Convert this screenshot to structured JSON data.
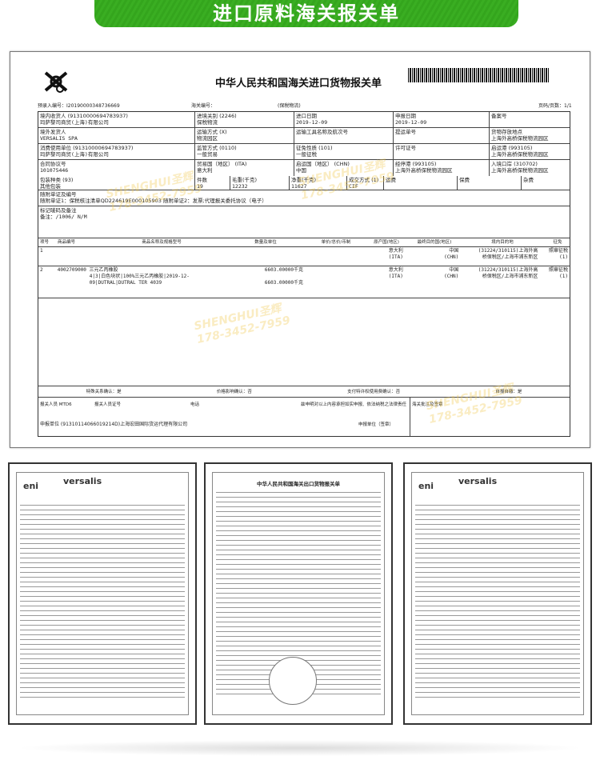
{
  "banner": {
    "title": "进口原料海关报关单"
  },
  "declaration": {
    "title": "中华人民共和国海关进口货物报关单",
    "pre_entry_no": "预录入编号：I20190000348736669",
    "customs_no_label": "海关编号：",
    "bonded": "(保税物流)",
    "page": "页码/页数：1/1",
    "fields": [
      [
        {
          "label": "境内收货人 (91310000694783937)",
          "value": "玛萨黎司商贸(上海)有限公司"
        },
        {
          "label": "进境关别 (2246)",
          "value": "保税物流"
        },
        {
          "label": "进口日期",
          "value": "2019-12-09"
        },
        {
          "label": "申报日期",
          "value": "2019-12-09"
        },
        {
          "label": "备案号",
          "value": ""
        }
      ],
      [
        {
          "label": "境外发货人",
          "value": "VERSALIS SPA"
        },
        {
          "label": "运输方式 (X)",
          "value": "物流园区"
        },
        {
          "label": "运输工具名称及航次号",
          "value": ""
        },
        {
          "label": "提运单号",
          "value": ""
        },
        {
          "label": "货物存放地点",
          "value": "上海外高桥保税物流园区"
        }
      ],
      [
        {
          "label": "消费使用单位 (91310000694783937)",
          "value": "玛萨黎司商贸(上海)有限公司"
        },
        {
          "label": "监管方式 (0110)",
          "value": "一般贸易"
        },
        {
          "label": "征免性质 (101)",
          "value": "一般征税"
        },
        {
          "label": "许可证号",
          "value": ""
        },
        {
          "label": "启运港 (993105)",
          "value": "上海外高桥保税物流园区"
        }
      ],
      [
        {
          "label": "合同协议号",
          "value": "101075446"
        },
        {
          "label": "贸易国（地区） (ITA)",
          "value": "意大利"
        },
        {
          "label": "启运国（地区） (CHN)",
          "value": "中国"
        },
        {
          "label": "经停港 (993105)",
          "value": "上海外高桥保税物流园区"
        },
        {
          "label": "入境口岸 (310702)",
          "value": "上海外高桥保税物流园区"
        }
      ]
    ],
    "packing": {
      "label": "包装种类 (93)",
      "value": "其他包装",
      "pieces_label": "件数",
      "pieces": "19",
      "gross_label": "毛重(千克)",
      "gross": "12232",
      "net_label": "净重(千克)",
      "net": "11627",
      "terms_label": "成交方式 (1)",
      "terms": "CIF",
      "freight": "运费",
      "insurance": "保费",
      "misc": "杂费"
    },
    "attached_label": "随附单证及编号",
    "attached": "随附单证1：保税核注清单QD224619E000105903  随附单证2：发票;代理报关委托协议（电子）",
    "marks_label": "标记唛码及备注",
    "marks": "备注：/1006/ N/M",
    "item_headers": [
      "项号",
      "商品编号",
      "商品名称及规格型号",
      "数量及单位",
      "单价/总价/币制",
      "原产国(地区)",
      "最终目的国(地区)",
      "境内目的地",
      "征免"
    ],
    "items": [
      {
        "no": "1",
        "code": "",
        "name": "",
        "qty": "",
        "qty2": "",
        "price": "",
        "origin": "意大利",
        "origin_code": "(ITA)",
        "dest": "中国",
        "dest_code": "(CHN)",
        "domestic": "(31224/310115)上海外高",
        "domestic2": "桥保税区/上海市浦东新区",
        "duty": "照章征税",
        "duty_code": "(1)"
      },
      {
        "no": "2",
        "code": "4002709000",
        "name": "三元乙丙橡胶",
        "spec": "4|3|白色块状|100%三元乙丙橡胶|2019-12-",
        "spec2": "09|DUTRAL|DUTRAL TER 4039",
        "qty": "6603.00000千克",
        "qty2": "6603.00000千克",
        "price": "",
        "origin": "意大利",
        "origin_code": "(ITA)",
        "dest": "中国",
        "dest_code": "(CHN)",
        "domestic": "(31224/310115)上海外高",
        "domestic2": "桥保税区/上海市浦东新区",
        "duty": "照章征税",
        "duty_code": "(1)"
      }
    ],
    "confirm": [
      "特殊关系确认：是",
      "价格影响确认：否",
      "支付特许权使用费确认：否",
      "自报自缴：是"
    ],
    "declarant": "报关人员 MTD6",
    "declarant_cert": "报关人员证号",
    "phone": "电话",
    "statement": "兹申明对以上内容承担如实申报、依法纳税之法律责任",
    "customs_note": "海关批注及签章",
    "declaring_unit": "申报单位 (91310114066019214D)上海宏田国际货运代理有限公司",
    "declaring_seal": "申报单位（签章）"
  },
  "watermark": {
    "brand": "SHENGHUI圣辉",
    "phone": "178-3452-7959"
  },
  "thumbnails": [
    {
      "brand": "versalis",
      "logo": "eni"
    },
    {
      "title": "中华人民共和国海关出口货物报关单"
    },
    {
      "brand": "versalis",
      "logo": "eni"
    }
  ]
}
